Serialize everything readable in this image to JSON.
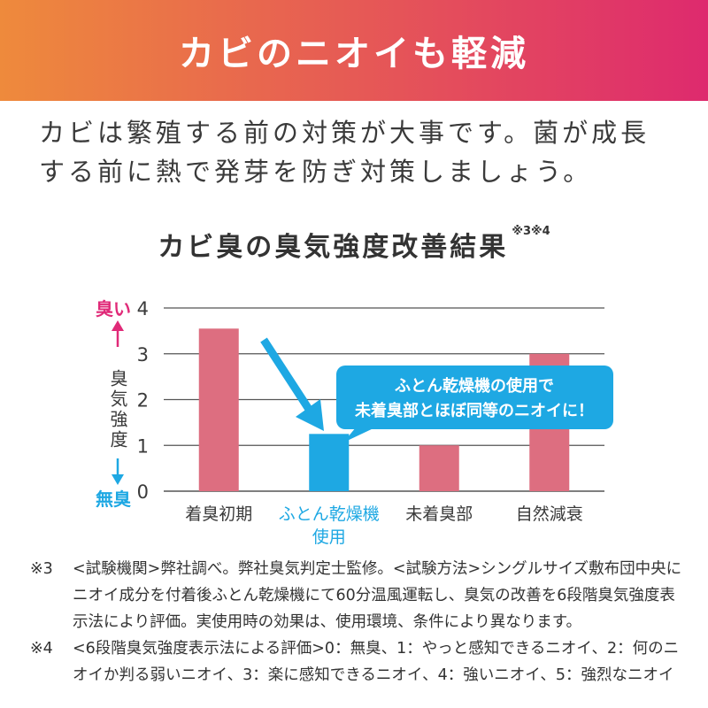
{
  "banner": {
    "title": "カビのニオイも軽減",
    "gradient_start": "#ee8a3c",
    "gradient_end": "#de2a6e"
  },
  "intro": {
    "text": "カビは繁殖する前の対策が大事です。菌が成長する前に熱で発芽を防ぎ対策しましょう。"
  },
  "chart_data": {
    "type": "bar",
    "title": "カビ臭の臭気強度改善結果",
    "title_note": "※3※4",
    "ylabel": "臭気強度",
    "y_top_label": "臭い",
    "y_bottom_label": "無臭",
    "ylim": [
      0,
      4
    ],
    "yticks": [
      "0",
      "1",
      "2",
      "3",
      "4"
    ],
    "grid": true,
    "categories": [
      {
        "label": "着臭初期",
        "highlight": false
      },
      {
        "label": "ふとん乾燥機\n使用",
        "highlight": true
      },
      {
        "label": "未着臭部",
        "highlight": false
      },
      {
        "label": "自然減衰",
        "highlight": false
      }
    ],
    "values": [
      3.55,
      1.25,
      1.0,
      3.0
    ],
    "callout": {
      "line1": "ふとん乾燥機の使用で",
      "line2": "未着臭部とほぼ同等のニオイに！"
    },
    "colors": {
      "bar": "#dd6e80",
      "highlight": "#1ea8e3",
      "top_label": "#e02a78",
      "bottom_label": "#1ea8e3",
      "grid": "#555555"
    }
  },
  "footnotes": [
    {
      "mark": "※3",
      "text": "<試験機関>弊社調べ。弊社臭気判定士監修。<試験方法>シングルサイズ敷布団中央にニオイ成分を付着後ふとん乾燥機にて60分温風運転し、臭気の改善を6段階臭気強度表示法により評価。実使用時の効果は、使用環境、条件により異なります。"
    },
    {
      "mark": "※4",
      "text": "<6段階臭気強度表示法による評価>0：無臭、1：やっと感知できるニオイ、2：何のニオイか判る弱いニオイ、3：楽に感知できるニオイ、4：強いニオイ、5：強烈なニオイ"
    }
  ]
}
